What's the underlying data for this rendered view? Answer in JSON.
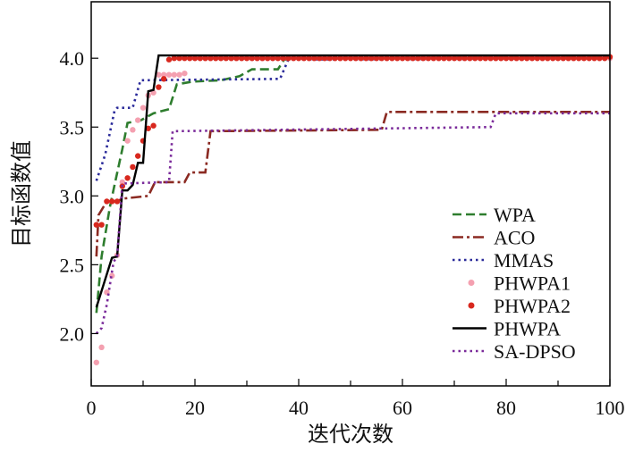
{
  "chart_data": {
    "type": "line",
    "title": "",
    "xlabel": "迭代次数",
    "ylabel": "目标函数值",
    "xlim": [
      0,
      100
    ],
    "ylim": [
      1.62,
      4.41
    ],
    "xticks": [
      "0",
      "20",
      "40",
      "60",
      "80",
      "100"
    ],
    "yticks": [
      "2.0",
      "2.5",
      "3.0",
      "3.5",
      "4.0"
    ],
    "grid": false,
    "legend_position": "bottom-right",
    "step": true,
    "series": [
      {
        "name": "WPA",
        "color": "#2e7d2e",
        "style": "dashed",
        "points": [
          [
            1,
            2.15
          ],
          [
            2,
            2.56
          ],
          [
            3.6,
            2.92
          ],
          [
            4.5,
            3.08
          ],
          [
            6,
            3.34
          ],
          [
            7,
            3.53
          ],
          [
            9.6,
            3.55
          ],
          [
            12,
            3.6
          ],
          [
            15,
            3.63
          ],
          [
            16.5,
            3.81
          ],
          [
            19.5,
            3.83
          ],
          [
            25,
            3.84
          ],
          [
            28.6,
            3.87
          ],
          [
            31,
            3.92
          ],
          [
            36,
            3.92
          ],
          [
            37.2,
            3.99
          ],
          [
            40,
            4.0
          ],
          [
            100,
            4.01
          ]
        ]
      },
      {
        "name": "ACO",
        "color": "#8b2a22",
        "style": "dashdot",
        "points": [
          [
            1,
            2.56
          ],
          [
            1.4,
            2.86
          ],
          [
            3,
            2.96
          ],
          [
            5,
            2.96
          ],
          [
            6,
            2.98
          ],
          [
            11,
            3.0
          ],
          [
            12.3,
            3.1
          ],
          [
            18,
            3.1
          ],
          [
            19,
            3.17
          ],
          [
            22,
            3.17
          ],
          [
            23,
            3.47
          ],
          [
            56,
            3.48
          ],
          [
            57,
            3.61
          ],
          [
            100,
            3.61
          ]
        ]
      },
      {
        "name": "MMAS",
        "color": "#2a2a9a",
        "style": "dotted",
        "points": [
          [
            1,
            3.11
          ],
          [
            2.7,
            3.3
          ],
          [
            4.5,
            3.62
          ],
          [
            5,
            3.64
          ],
          [
            8,
            3.64
          ],
          [
            9.5,
            3.84
          ],
          [
            36.4,
            3.85
          ],
          [
            38,
            3.99
          ],
          [
            100,
            4.0
          ]
        ]
      },
      {
        "name": "PHWPA1",
        "color": "#f4a0b0",
        "style": "markers",
        "points": [
          [
            1,
            1.79
          ],
          [
            2,
            1.9
          ],
          [
            3,
            2.3
          ],
          [
            4,
            2.42
          ],
          [
            5,
            2.57
          ],
          [
            6,
            3.1
          ],
          [
            7,
            3.4
          ],
          [
            8,
            3.48
          ],
          [
            9,
            3.55
          ],
          [
            10,
            3.64
          ],
          [
            11,
            3.73
          ],
          [
            12,
            3.75
          ],
          [
            13,
            3.88
          ],
          [
            18,
            3.89
          ],
          [
            19,
            4.0
          ],
          [
            100,
            4.0
          ]
        ]
      },
      {
        "name": "PHWPA2",
        "color": "#d8281e",
        "style": "markers",
        "points": [
          [
            1,
            2.79
          ],
          [
            2,
            2.79
          ],
          [
            3,
            2.96
          ],
          [
            5,
            2.96
          ],
          [
            6,
            3.07
          ],
          [
            7,
            3.13
          ],
          [
            8,
            3.21
          ],
          [
            9,
            3.29
          ],
          [
            10,
            3.4
          ],
          [
            11,
            3.49
          ],
          [
            12,
            3.51
          ],
          [
            13,
            3.79
          ],
          [
            14,
            3.85
          ],
          [
            15,
            3.99
          ],
          [
            16,
            4.0
          ],
          [
            100,
            4.01
          ]
        ]
      },
      {
        "name": "PHWPA",
        "color": "#000000",
        "style": "solid",
        "points": [
          [
            1,
            2.19
          ],
          [
            3,
            2.43
          ],
          [
            4,
            2.55
          ],
          [
            5,
            2.56
          ],
          [
            6,
            3.04
          ],
          [
            7,
            3.04
          ],
          [
            8,
            3.08
          ],
          [
            9,
            3.24
          ],
          [
            10,
            3.24
          ],
          [
            11,
            3.76
          ],
          [
            12,
            3.77
          ],
          [
            13,
            4.02
          ],
          [
            100,
            4.02
          ]
        ]
      },
      {
        "name": "SA-DPSO",
        "color": "#7a2a9a",
        "style": "dotted",
        "points": [
          [
            1,
            2.0
          ],
          [
            2,
            2.04
          ],
          [
            3,
            2.21
          ],
          [
            4.3,
            2.52
          ],
          [
            5,
            2.56
          ],
          [
            6,
            3.09
          ],
          [
            15,
            3.1
          ],
          [
            15.7,
            3.47
          ],
          [
            77,
            3.5
          ],
          [
            78,
            3.6
          ],
          [
            100,
            3.6
          ]
        ]
      }
    ]
  }
}
